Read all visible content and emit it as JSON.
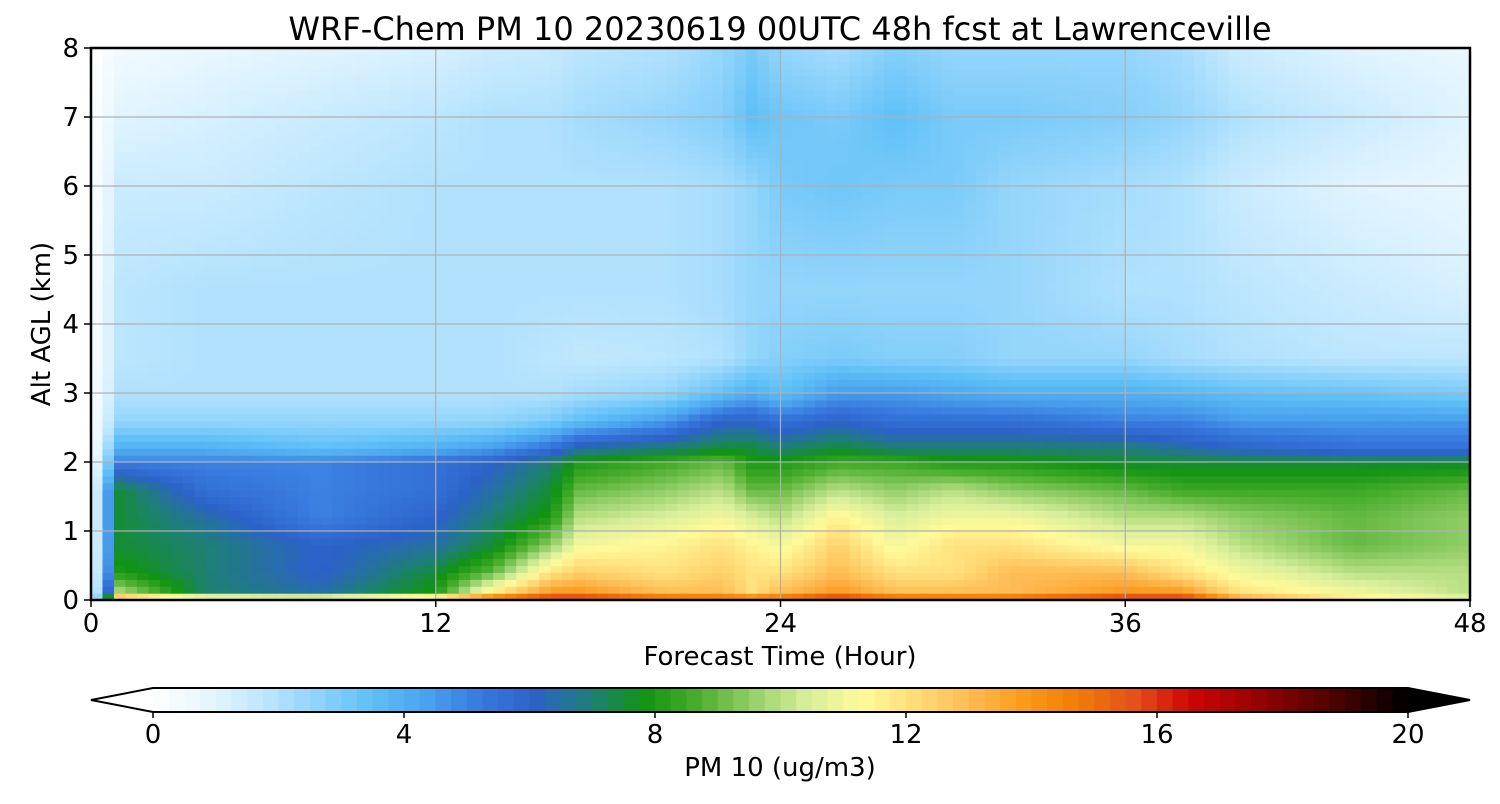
{
  "chart_data": {
    "type": "heatmap",
    "title": "WRF-Chem PM 10  20230619 00UTC 48h fcst at Lawrenceville",
    "xlabel": "Forecast Time (Hour)",
    "ylabel": "Alt AGL (km)",
    "xlim": [
      0,
      48
    ],
    "ylim": [
      0,
      8
    ],
    "xticks": [
      0,
      12,
      24,
      36,
      48
    ],
    "yticks": [
      0,
      1,
      2,
      3,
      4,
      5,
      6,
      7,
      8
    ],
    "grid": true,
    "colorbar": {
      "label": "PM 10  (ug/m3)",
      "range": [
        0,
        20
      ],
      "ticks": [
        0,
        4,
        8,
        12,
        16,
        20
      ],
      "extend": "both",
      "colors": [
        "#ffffff",
        "#e6f6ff",
        "#bfe7fe",
        "#8fd3fb",
        "#5fc0f7",
        "#4aa3ee",
        "#3778dd",
        "#2c62c8",
        "#1f7f78",
        "#119411",
        "#4aae2e",
        "#96d06a",
        "#d9ef9b",
        "#fffa9a",
        "#ffdc78",
        "#ffba52",
        "#fa9a1a",
        "#f07a08",
        "#e4501a",
        "#cc0505",
        "#a10303",
        "#6e0202",
        "#3a0101",
        "#000000"
      ]
    },
    "x": [
      0,
      1,
      4,
      8,
      12,
      14,
      16,
      17,
      20,
      22,
      23,
      24,
      26,
      28,
      30,
      32,
      36,
      38,
      40,
      44,
      48
    ],
    "y": [
      0,
      0.1,
      0.4,
      0.8,
      1.2,
      1.6,
      2.0,
      2.2,
      2.6,
      3.0,
      3.5,
      4.5,
      6.0,
      7.0,
      8.0
    ],
    "z": [
      [
        0,
        15,
        14,
        14,
        15,
        16,
        17,
        17,
        16,
        16,
        16,
        16,
        17,
        16,
        16,
        16,
        17,
        17,
        14,
        12,
        11
      ],
      [
        0,
        10,
        7,
        6.5,
        8,
        12,
        14,
        14,
        13,
        13,
        12,
        13,
        14,
        13,
        13,
        13,
        14,
        14,
        12,
        11,
        10
      ],
      [
        0,
        8,
        7,
        6,
        7.5,
        9,
        12,
        12.5,
        12,
        12.5,
        12,
        12,
        13,
        12,
        12,
        13,
        13,
        12,
        11,
        10,
        10
      ],
      [
        0,
        7.5,
        7,
        6,
        6.5,
        7.5,
        9.5,
        11,
        11.5,
        12,
        11.5,
        11,
        12.5,
        11,
        12,
        12,
        11,
        11,
        10,
        9,
        9.5
      ],
      [
        0,
        7.5,
        6.5,
        5,
        6,
        7,
        8,
        10,
        10.5,
        11,
        10.5,
        10,
        11.5,
        10.5,
        11,
        11,
        10,
        10,
        9.5,
        9,
        9.5
      ],
      [
        0,
        7.5,
        5.5,
        5,
        5.5,
        6.5,
        7.5,
        9,
        9.5,
        10,
        9,
        9,
        10,
        9.5,
        10,
        9.5,
        9,
        8.5,
        8.5,
        8.5,
        9
      ],
      [
        0,
        5,
        5,
        5,
        5.5,
        6,
        7,
        8,
        8.5,
        9,
        8,
        8,
        8.5,
        8.5,
        8,
        8,
        7.5,
        7.5,
        7.5,
        7.5,
        7.5
      ],
      [
        0,
        4,
        4,
        3.5,
        4,
        4.5,
        5.5,
        6.5,
        7,
        7.5,
        7.5,
        7,
        7.5,
        7,
        7,
        7,
        7,
        6.5,
        6,
        5.5,
        5.5
      ],
      [
        0,
        2.5,
        2.5,
        2.5,
        2.5,
        2.5,
        3,
        3.5,
        4.5,
        6,
        6,
        5.5,
        6,
        5.5,
        5.5,
        5.5,
        5,
        5,
        4.5,
        4.5,
        4.5
      ],
      [
        0,
        2,
        2,
        2,
        2,
        2,
        2,
        2.2,
        2.5,
        3.5,
        4,
        3.5,
        4.5,
        4.5,
        4.2,
        4,
        4,
        3.8,
        3.5,
        3.3,
        3
      ],
      [
        0,
        1.8,
        2,
        2,
        2,
        2,
        1.8,
        1.7,
        1.8,
        2,
        2.5,
        2.8,
        3,
        2.8,
        2.8,
        2.5,
        2.5,
        2.2,
        2,
        1.8,
        1.8
      ],
      [
        0,
        1.8,
        2,
        2,
        2,
        2,
        2,
        2,
        2,
        2.2,
        2.5,
        2.5,
        2.5,
        2.5,
        2.5,
        2.5,
        2,
        2,
        1.8,
        1.5,
        1.2
      ],
      [
        0,
        1.5,
        1.5,
        1.8,
        2,
        2,
        2,
        2,
        2,
        2.2,
        2.5,
        3,
        3.2,
        3,
        3,
        2.5,
        2.2,
        2,
        1.5,
        1,
        0.8
      ],
      [
        0,
        1,
        1.2,
        1.5,
        1.8,
        2,
        2,
        2.2,
        2.5,
        2.8,
        3.5,
        3.2,
        3,
        3.5,
        3,
        3,
        2.8,
        2.5,
        2,
        1.5,
        1
      ],
      [
        0,
        0.5,
        0.8,
        1,
        1.2,
        1.5,
        1.6,
        1.8,
        2,
        2.5,
        3,
        2.5,
        2.2,
        2.8,
        2.5,
        2.5,
        2.5,
        2.2,
        1.5,
        1,
        0.8
      ]
    ]
  }
}
